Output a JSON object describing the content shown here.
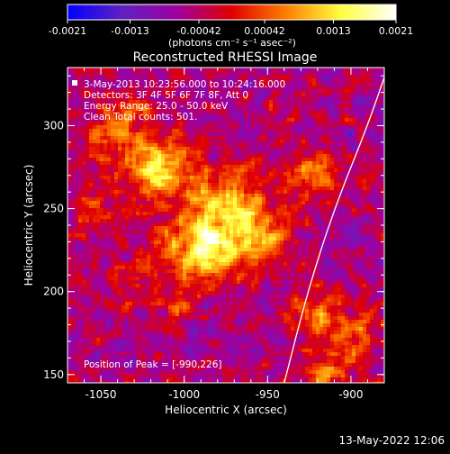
{
  "colorbar": {
    "tick_labels": [
      "-0.0021",
      "-0.0013",
      "-0.00042",
      "0.00042",
      "0.0013",
      "0.0021"
    ],
    "tick_values": [
      -0.0021,
      -0.0013,
      -0.00042,
      0.00042,
      0.0013,
      0.0021
    ],
    "range": [
      -0.0021,
      0.0021
    ],
    "unit_label": "(photons cm⁻² s⁻¹ asec⁻²)",
    "stops": [
      "#0000ff",
      "#6020c0",
      "#a000a0",
      "#e00000",
      "#ff8000",
      "#ffff40",
      "#ffffff"
    ]
  },
  "info": {
    "line1": "3-May-2013 10:23:56.000 to 10:24:16.000",
    "line2": "Detectors: 3F 4F 5F 6F 7F 8F, Att 0",
    "line3": "Energy Range: 25.0 - 50.0 keV",
    "line4": "Clean     Total counts: 501.",
    "peak": "Position of Peak = [-990,226]"
  },
  "footer": {
    "date": "13-May-2022 12:06"
  },
  "chart_data": {
    "type": "heatmap",
    "title": "Reconstructed RHESSI Image",
    "xlabel": "Heliocentric X (arcsec)",
    "ylabel": "Heliocentric Y (arcsec)",
    "xlim": [
      -1070,
      -880
    ],
    "ylim": [
      145,
      335
    ],
    "x_ticks": [
      -1050,
      -1000,
      -950,
      -900
    ],
    "x_tick_labels": [
      "-1050",
      "-1000",
      "-950",
      "-900"
    ],
    "y_ticks": [
      150,
      200,
      250,
      300
    ],
    "y_tick_labels": [
      "150",
      "200",
      "250",
      "300"
    ],
    "peak": [
      -990,
      226
    ],
    "sources": [
      {
        "x": -990,
        "y": 226,
        "sigma": 14,
        "amp": 0.0021
      },
      {
        "x": -1015,
        "y": 273,
        "sigma": 13,
        "amp": 0.0018
      },
      {
        "x": -975,
        "y": 255,
        "sigma": 16,
        "amp": 0.0013
      },
      {
        "x": -955,
        "y": 232,
        "sigma": 12,
        "amp": 0.0016
      },
      {
        "x": -1040,
        "y": 300,
        "sigma": 13,
        "amp": 0.0012
      },
      {
        "x": -1055,
        "y": 250,
        "sigma": 10,
        "amp": 0.0009
      },
      {
        "x": -925,
        "y": 270,
        "sigma": 12,
        "amp": 0.0009
      },
      {
        "x": -920,
        "y": 185,
        "sigma": 11,
        "amp": 0.0011
      },
      {
        "x": -895,
        "y": 175,
        "sigma": 10,
        "amp": 0.0009
      },
      {
        "x": -915,
        "y": 152,
        "sigma": 10,
        "amp": 0.001
      },
      {
        "x": -1030,
        "y": 205,
        "sigma": 12,
        "amp": 0.0006
      },
      {
        "x": -1005,
        "y": 190,
        "sigma": 10,
        "amp": 0.0005
      }
    ],
    "limb_curve": [
      [
        -940,
        145
      ],
      [
        -926,
        200
      ],
      [
        -910,
        250
      ],
      [
        -890,
        300
      ],
      [
        -878,
        335
      ]
    ],
    "grid": false
  }
}
